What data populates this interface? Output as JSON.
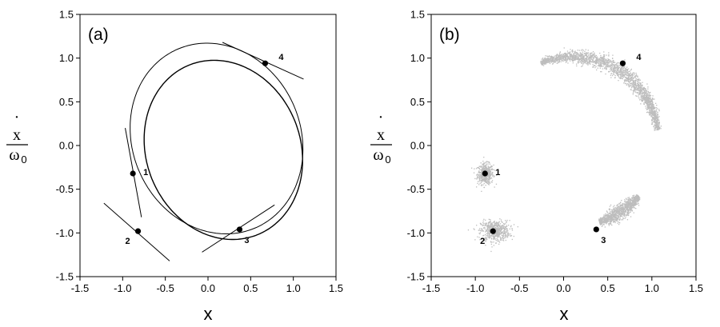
{
  "chart_data": [
    {
      "type": "line",
      "panel_label": "(a)",
      "xlabel": "x",
      "ylabel_numerator": "x",
      "ylabel_dot": "·",
      "ylabel_denominator": "ω",
      "ylabel_denominator_sub": "0",
      "xlim": [
        -1.5,
        1.5
      ],
      "ylim": [
        -1.5,
        1.5
      ],
      "xticks": [
        "-1.5",
        "-1.0",
        "-0.5",
        "0.0",
        "0.5",
        "1.0",
        "1.5"
      ],
      "yticks": [
        "-1.5",
        "-1.0",
        "-0.5",
        "0.0",
        "0.5",
        "1.0",
        "1.5"
      ],
      "curves": [
        {
          "cx": 0.1,
          "cy": 0.08,
          "rx": 0.98,
          "ry": 1.12,
          "angle_deg": 28,
          "width": 1.0
        },
        {
          "cx": 0.18,
          "cy": -0.05,
          "rx": 0.9,
          "ry": 1.05,
          "angle_deg": 25,
          "width": 1.4
        }
      ],
      "points": [
        {
          "label": "1",
          "x": -0.88,
          "y": -0.32
        },
        {
          "label": "2",
          "x": -0.82,
          "y": -0.98
        },
        {
          "label": "3",
          "x": 0.37,
          "y": -0.96
        },
        {
          "label": "4",
          "x": 0.67,
          "y": 0.94
        }
      ],
      "tangents": [
        {
          "x1": -0.97,
          "y1": 0.2,
          "x2": -0.78,
          "y2": -0.82
        },
        {
          "x1": -1.22,
          "y1": -0.66,
          "x2": -0.45,
          "y2": -1.32
        },
        {
          "x1": -0.07,
          "y1": -1.22,
          "x2": 0.78,
          "y2": -0.68
        },
        {
          "x1": 0.17,
          "y1": 1.18,
          "x2": 1.12,
          "y2": 0.76
        }
      ]
    },
    {
      "type": "scatter",
      "panel_label": "(b)",
      "xlabel": "x",
      "ylabel_numerator": "x",
      "ylabel_dot": "·",
      "ylabel_denominator": "ω",
      "ylabel_denominator_sub": "0",
      "xlim": [
        -1.5,
        1.5
      ],
      "ylim": [
        -1.5,
        1.5
      ],
      "xticks": [
        "-1.5",
        "-1.0",
        "-0.5",
        "0.0",
        "0.5",
        "1.0",
        "1.5"
      ],
      "yticks": [
        "-1.5",
        "-1.0",
        "-0.5",
        "0.0",
        "0.5",
        "1.0",
        "1.5"
      ],
      "cloud_color": "#bdbdbd",
      "clusters": [
        {
          "shape": "blob",
          "cx": -0.89,
          "cy": -0.32,
          "rx": 0.1,
          "ry": 0.13,
          "n": 500
        },
        {
          "shape": "blob",
          "cx": -0.78,
          "cy": -0.97,
          "rx": 0.18,
          "ry": 0.13,
          "n": 600
        },
        {
          "shape": "arc",
          "cx": 0.1,
          "cy": 0.05,
          "r": 0.97,
          "a0": -72,
          "a1": -40,
          "spread": 0.07,
          "n": 1100
        },
        {
          "shape": "arc",
          "cx": 0.1,
          "cy": 0.05,
          "r": 0.97,
          "a0": 8,
          "a1": 112,
          "spread": 0.07,
          "n": 2200
        }
      ],
      "points": [
        {
          "label": "1",
          "x": -0.89,
          "y": -0.32
        },
        {
          "label": "2",
          "x": -0.8,
          "y": -0.98
        },
        {
          "label": "3",
          "x": 0.37,
          "y": -0.96
        },
        {
          "label": "4",
          "x": 0.67,
          "y": 0.94
        }
      ]
    }
  ]
}
